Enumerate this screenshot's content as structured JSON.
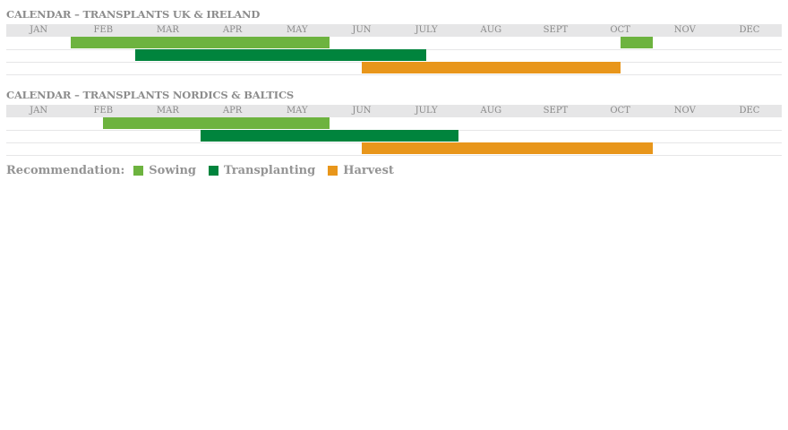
{
  "months": [
    "JAN",
    "FEB",
    "MAR",
    "APR",
    "MAY",
    "JUN",
    "JULY",
    "AUG",
    "SEPT",
    "OCT",
    "NOV",
    "DEC"
  ],
  "colors": {
    "sowing": "#6db33f",
    "transplanting": "#00843d",
    "harvest": "#e8961b"
  },
  "calendars": [
    {
      "title": "CALENDAR – TRANSPLANTS UK & IRELAND",
      "rows": [
        {
          "type": "sowing",
          "periods": [
            {
              "from": "Feb",
              "to": "May"
            },
            {
              "from": "mid Oct",
              "to": "Oct"
            }
          ]
        },
        {
          "type": "transplanting",
          "periods": [
            {
              "from": "Mar",
              "to": "mid Jul"
            }
          ]
        },
        {
          "type": "harvest",
          "periods": [
            {
              "from": "mid Jun",
              "to": "mid Oct"
            }
          ]
        }
      ]
    },
    {
      "title": "CALENDAR – TRANSPLANTS NORDICS & BALTICS",
      "rows": [
        {
          "type": "sowing",
          "periods": [
            {
              "from": "mid Feb",
              "to": "May"
            }
          ]
        },
        {
          "type": "transplanting",
          "periods": [
            {
              "from": "Apr",
              "to": "Jul"
            }
          ]
        },
        {
          "type": "harvest",
          "periods": [
            {
              "from": "mid Jun",
              "to": "Oct"
            }
          ]
        }
      ]
    }
  ],
  "legend": {
    "label": "Recommendation:",
    "items": [
      {
        "type": "sowing",
        "label": "Sowing"
      },
      {
        "type": "transplanting",
        "label": "Transplanting"
      },
      {
        "type": "harvest",
        "label": "Harvest"
      }
    ]
  }
}
